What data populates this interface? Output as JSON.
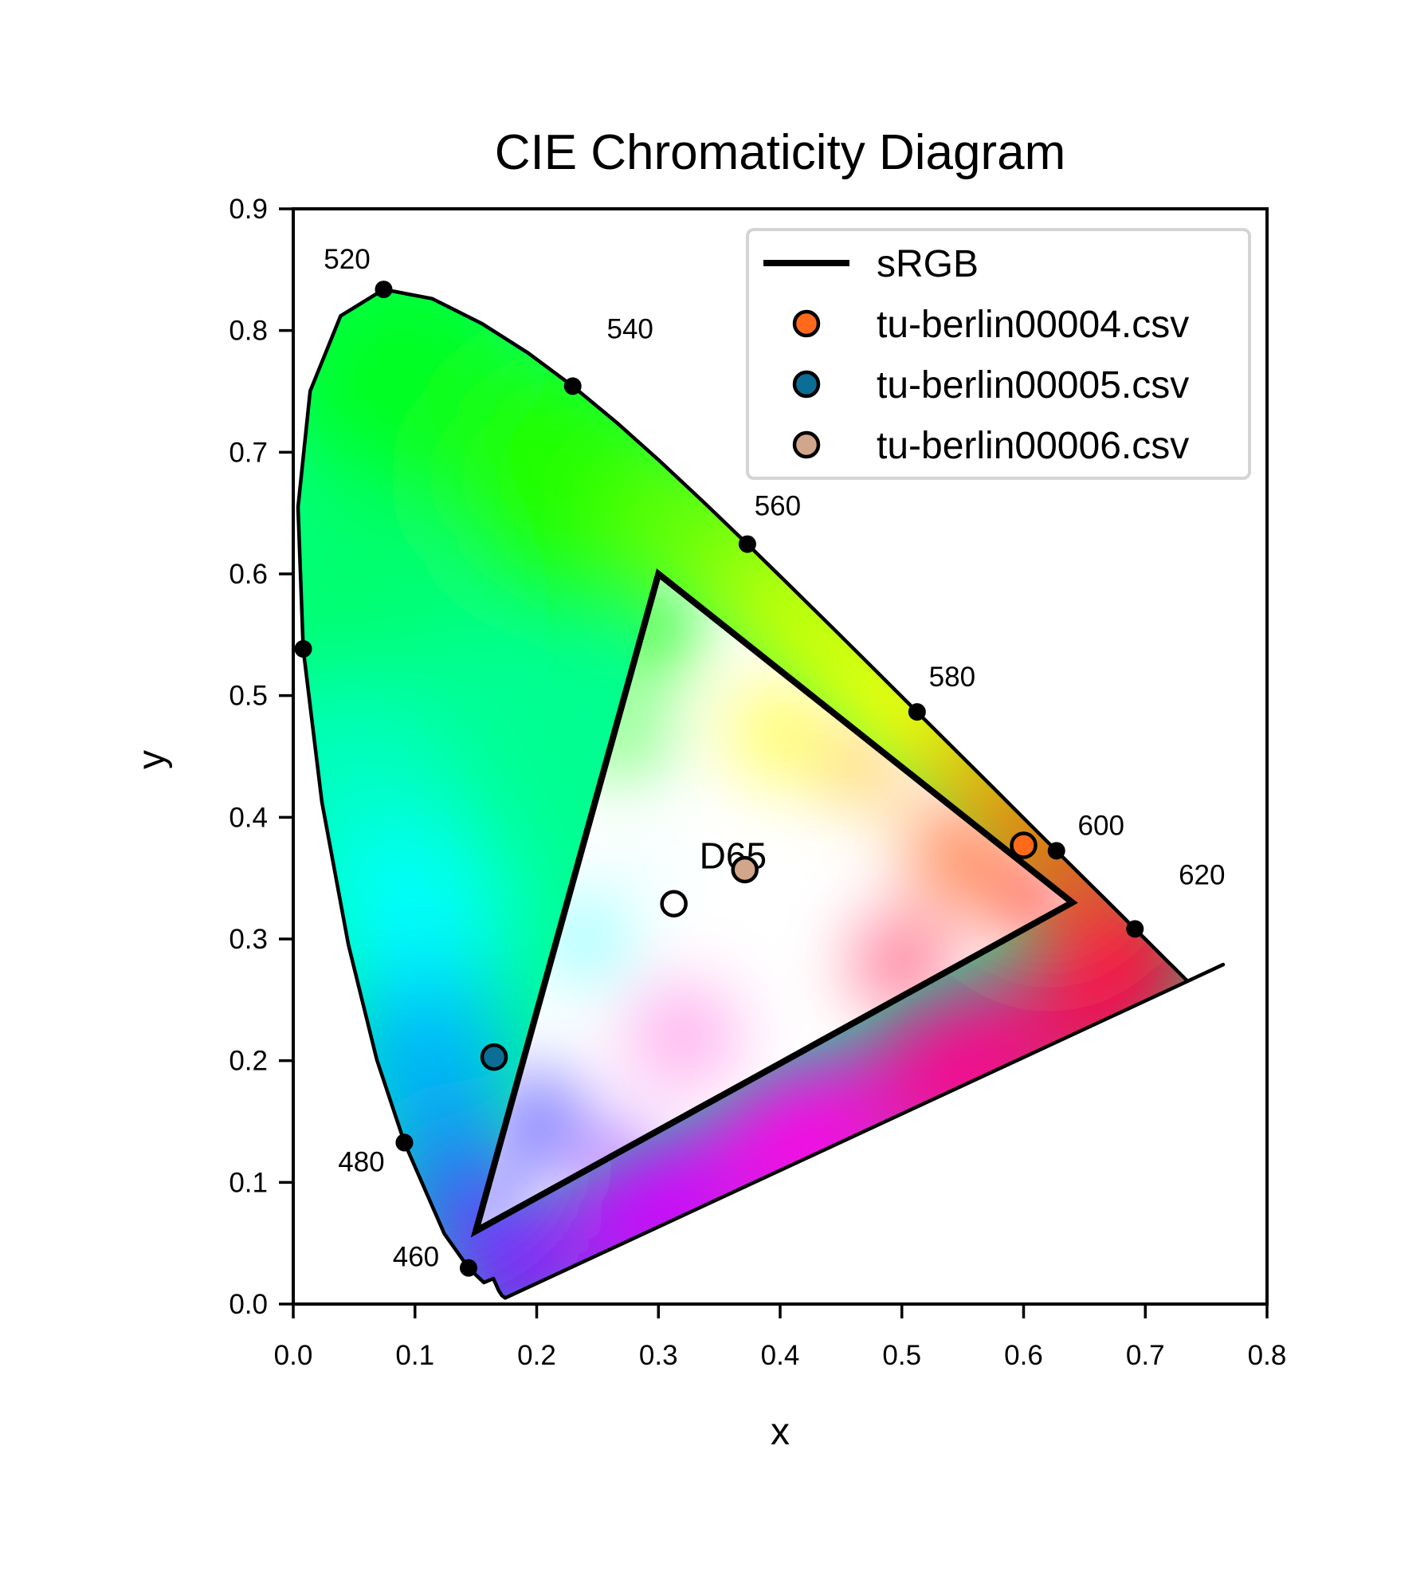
{
  "chart_data": {
    "type": "scatter",
    "title": "CIE Chromaticity Diagram",
    "xlabel": "x",
    "ylabel": "y",
    "xlim": [
      0.0,
      0.8
    ],
    "ylim": [
      0.0,
      0.9
    ],
    "xticks": [
      "0.0",
      "0.1",
      "0.2",
      "0.3",
      "0.4",
      "0.5",
      "0.6",
      "0.7",
      "0.8"
    ],
    "yticks": [
      "0.0",
      "0.1",
      "0.2",
      "0.3",
      "0.4",
      "0.5",
      "0.6",
      "0.7",
      "0.8",
      "0.9"
    ],
    "grid": false,
    "legend_position": "top-right",
    "spectral_locus": [
      [
        0.1741,
        0.005
      ],
      [
        0.1714,
        0.0071
      ],
      [
        0.1689,
        0.0109
      ],
      [
        0.1644,
        0.0209
      ],
      [
        0.1566,
        0.0177
      ],
      [
        0.144,
        0.0297
      ],
      [
        0.1241,
        0.0578
      ],
      [
        0.0913,
        0.1327
      ],
      [
        0.0687,
        0.2007
      ],
      [
        0.0454,
        0.295
      ],
      [
        0.0235,
        0.4127
      ],
      [
        0.0082,
        0.5384
      ],
      [
        0.0039,
        0.6548
      ],
      [
        0.0139,
        0.7502
      ],
      [
        0.0389,
        0.812
      ],
      [
        0.0743,
        0.8338
      ],
      [
        0.1142,
        0.8262
      ],
      [
        0.1547,
        0.8059
      ],
      [
        0.1929,
        0.7816
      ],
      [
        0.2296,
        0.7543
      ],
      [
        0.2658,
        0.7243
      ],
      [
        0.3016,
        0.6923
      ],
      [
        0.3373,
        0.6589
      ],
      [
        0.3731,
        0.6245
      ],
      [
        0.4087,
        0.5896
      ],
      [
        0.4441,
        0.5547
      ],
      [
        0.4788,
        0.5202
      ],
      [
        0.5125,
        0.4866
      ],
      [
        0.5448,
        0.4544
      ],
      [
        0.5752,
        0.4242
      ],
      [
        0.6029,
        0.3965
      ],
      [
        0.627,
        0.3725
      ],
      [
        0.6482,
        0.3514
      ],
      [
        0.6658,
        0.334
      ],
      [
        0.6801,
        0.3197
      ],
      [
        0.6915,
        0.3083
      ],
      [
        0.7006,
        0.2993
      ],
      [
        0.7079,
        0.292
      ],
      [
        0.714,
        0.2859
      ],
      [
        0.719,
        0.2809
      ],
      [
        0.723,
        0.277
      ],
      [
        0.726,
        0.274
      ],
      [
        0.7283,
        0.2717
      ],
      [
        0.73,
        0.27
      ],
      [
        0.7311,
        0.2689
      ],
      [
        0.732,
        0.268
      ],
      [
        0.7327,
        0.2673
      ],
      [
        0.7334,
        0.2666
      ],
      [
        0.734,
        0.266
      ],
      [
        0.7344,
        0.2656
      ],
      [
        0.7347,
        0.2653
      ]
    ],
    "line_of_purples_extension": [
      [
        0.7347,
        0.2653
      ],
      [
        0.764,
        0.279
      ]
    ],
    "wavelength_markers": [
      {
        "label": "460",
        "x": 0.144,
        "y": 0.0297
      },
      {
        "label": "",
        "x": 0.0913,
        "y": 0.1327
      },
      {
        "label": "480",
        "x": 0.0913,
        "y": 0.1327
      },
      {
        "label": "",
        "x": 0.0082,
        "y": 0.5384
      },
      {
        "label": "520",
        "x": 0.0743,
        "y": 0.8338
      },
      {
        "label": "540",
        "x": 0.2296,
        "y": 0.7543
      },
      {
        "label": "560",
        "x": 0.3731,
        "y": 0.6245
      },
      {
        "label": "580",
        "x": 0.5125,
        "y": 0.4866
      },
      {
        "label": "600",
        "x": 0.627,
        "y": 0.3725
      },
      {
        "label": "620",
        "x": 0.6915,
        "y": 0.3083
      }
    ],
    "gamut": {
      "name": "sRGB",
      "points": [
        [
          0.64,
          0.33
        ],
        [
          0.3,
          0.6
        ],
        [
          0.15,
          0.06
        ]
      ]
    },
    "whitepoint": {
      "label": "D65",
      "x": 0.3127,
      "y": 0.329
    },
    "series": [
      {
        "name": "tu-berlin00004.csv",
        "color": "#ff6a1a",
        "x": 0.6,
        "y": 0.377
      },
      {
        "name": "tu-berlin00005.csv",
        "color": "#0a6e96",
        "x": 0.165,
        "y": 0.203
      },
      {
        "name": "tu-berlin00006.csv",
        "color": "#d2a68a",
        "x": 0.371,
        "y": 0.357
      }
    ]
  }
}
